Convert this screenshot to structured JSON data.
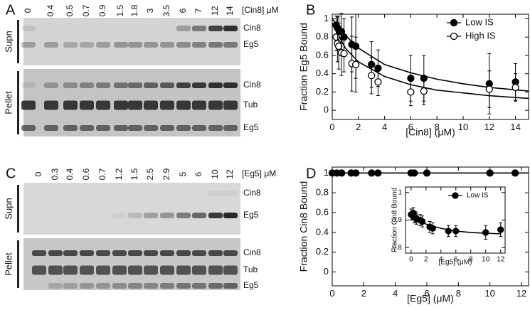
{
  "gels": [
    {
      "label": "A",
      "unit": "[Cin8] μM",
      "lanes": [
        "0",
        "0.4",
        "0.5",
        "0.7",
        "0.9",
        "1.5",
        "1.8",
        "3",
        "3.5",
        "6",
        "7",
        "12",
        "14"
      ],
      "sections": [
        {
          "label": "Supn",
          "bands": [
            "Cin8",
            "Eg5"
          ]
        },
        {
          "label": "Pellet",
          "bands": [
            "Cin8",
            "Tub",
            "Eg5"
          ]
        }
      ]
    },
    {
      "label": "C",
      "unit": "[Eg5] μM",
      "lanes": [
        "0",
        "0.3",
        "0.4",
        "0.6",
        "0.7",
        "1.2",
        "1.5",
        "2.5",
        "2.9",
        "5",
        "6",
        "10",
        "12"
      ],
      "sections": [
        {
          "label": "Supn",
          "bands": [
            "Cin8",
            "Eg5"
          ]
        },
        {
          "label": "Pellet",
          "bands": [
            "Cin8",
            "Tub",
            "Eg5"
          ]
        }
      ]
    }
  ],
  "chart_data": [
    {
      "type": "scatter",
      "panel_label": "B",
      "xlabel": "[Cin8] (μM)",
      "ylabel": "Fraction Eg5 Bound",
      "xlim": [
        0,
        15
      ],
      "ylim": [
        -0.1,
        1.05
      ],
      "xticks": [
        0,
        2,
        4,
        6,
        8,
        10,
        12,
        14
      ],
      "yticks": [
        0,
        0.2,
        0.4,
        0.6,
        0.8,
        1
      ],
      "legend": "upper right",
      "series": [
        {
          "name": "Low IS",
          "marker": "filled",
          "color": "#000000",
          "x": [
            0.3,
            0.4,
            0.5,
            0.7,
            0.9,
            1.5,
            1.8,
            3,
            3.5,
            6,
            7,
            12,
            14
          ],
          "values": [
            0.93,
            0.9,
            0.88,
            0.86,
            0.8,
            0.72,
            0.7,
            0.5,
            0.46,
            0.35,
            0.35,
            0.29,
            0.31
          ],
          "errors": [
            0.1,
            0.12,
            0.15,
            0.2,
            0.2,
            0.3,
            0.35,
            0.25,
            0.2,
            0.25,
            0.25,
            0.33,
            0.2
          ]
        },
        {
          "name": "High IS",
          "marker": "open",
          "color": "#000000",
          "x": [
            0.3,
            0.4,
            0.5,
            0.7,
            0.9,
            1.5,
            1.8,
            3,
            3.5,
            6,
            7,
            12,
            14
          ],
          "values": [
            0.8,
            0.73,
            0.7,
            0.63,
            0.62,
            0.51,
            0.5,
            0.38,
            0.31,
            0.2,
            0.21,
            0.23,
            0.25
          ],
          "errors": [
            0.15,
            0.2,
            0.25,
            0.25,
            0.2,
            0.3,
            0.3,
            0.2,
            0.15,
            0.15,
            0.15,
            0.2,
            0.15
          ]
        }
      ],
      "fits": [
        {
          "x": [
            0,
            1,
            2,
            4,
            6,
            8,
            10,
            12,
            15
          ],
          "values": [
            1.0,
            0.82,
            0.68,
            0.5,
            0.41,
            0.34,
            0.29,
            0.25,
            0.21
          ]
        },
        {
          "x": [
            0,
            1,
            2,
            4,
            6,
            8,
            10,
            12,
            15
          ],
          "values": [
            0.95,
            0.68,
            0.53,
            0.37,
            0.28,
            0.22,
            0.19,
            0.16,
            0.13
          ]
        }
      ]
    },
    {
      "type": "scatter",
      "panel_label": "D",
      "xlabel": "[Eg5] (μM)",
      "ylabel": "Fraction Cin8 Bound",
      "xlim": [
        0,
        12.45
      ],
      "ylim": [
        -0.14,
        1.06
      ],
      "xticks": [
        0,
        2,
        4,
        6,
        8,
        10,
        12
      ],
      "yticks": [
        0,
        0.2,
        0.4,
        0.6,
        0.8,
        1
      ],
      "series": [
        {
          "name": "Low IS",
          "marker": "filled",
          "color": "#000000",
          "x": [
            0,
            0.3,
            0.6,
            1.2,
            1.5,
            2.5,
            2.9,
            5,
            5.2,
            6,
            10,
            11.6
          ],
          "values": [
            1,
            1,
            1,
            1,
            1,
            1,
            1,
            1,
            1,
            1,
            1,
            1
          ]
        }
      ],
      "fits": [
        {
          "x": [
            0,
            12.45
          ],
          "values": [
            1,
            1
          ]
        }
      ]
    },
    {
      "type": "scatter",
      "xlabel": "[Eg5] (μM)",
      "ylabel": "Fraction Cin8 Bound",
      "xlim": [
        -0.75,
        12.6
      ],
      "ylim": [
        0.78,
        1.02
      ],
      "xticks": [
        0,
        2,
        4,
        6,
        8,
        10,
        12
      ],
      "yticks": [
        0.8,
        0.9,
        1
      ],
      "legend": "upper right",
      "series": [
        {
          "name": "Low IS",
          "marker": "filled",
          "color": "#000000",
          "x": [
            0,
            0.3,
            0.4,
            0.6,
            0.7,
            1.2,
            1.5,
            2.5,
            2.9,
            5,
            6,
            10,
            12
          ],
          "values": [
            0.92,
            0.925,
            0.91,
            0.91,
            0.905,
            0.9,
            0.895,
            0.875,
            0.87,
            0.86,
            0.86,
            0.855,
            0.865
          ],
          "errors": [
            0.02,
            0.02,
            0.02,
            0.02,
            0.02,
            0.02,
            0.02,
            0.02,
            0.02,
            0.02,
            0.02,
            0.025,
            0.025
          ]
        }
      ],
      "fits": [
        {
          "x": [
            0,
            1,
            2,
            4,
            6,
            8,
            10,
            12
          ],
          "values": [
            0.93,
            0.9,
            0.885,
            0.87,
            0.86,
            0.855,
            0.852,
            0.85
          ]
        }
      ]
    }
  ]
}
